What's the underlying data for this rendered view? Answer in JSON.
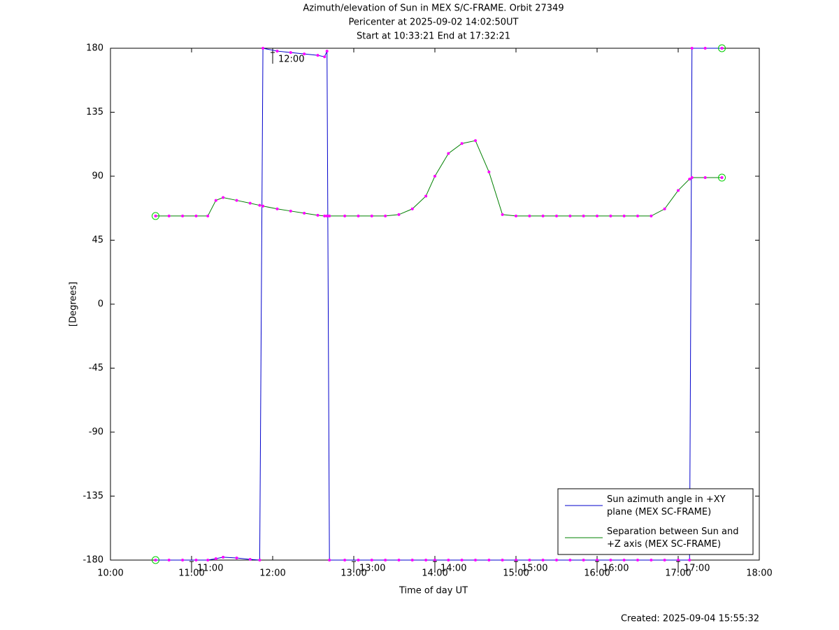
{
  "chart_data": {
    "type": "line",
    "title": "Azimuth/elevation of Sun in MEX S/C-FRAME.  Orbit 27349",
    "subtitle": "Pericenter at 2025-09-02 14:02:50UT",
    "subtitle2": "Start at 10:33:21 End at 17:32:21",
    "xlabel": "Time of day UT",
    "ylabel": "[Degrees]",
    "footer": "Created: 2025-09-04 15:55:32",
    "x": [
      10.556,
      10.722,
      10.889,
      11.056,
      11.2,
      11.3,
      11.389,
      11.556,
      11.722,
      11.84,
      11.88,
      12.056,
      12.222,
      12.389,
      12.556,
      12.64,
      12.67,
      12.7,
      12.889,
      13.056,
      13.222,
      13.389,
      13.556,
      13.722,
      13.889,
      14.0,
      14.167,
      14.333,
      14.5,
      14.667,
      14.833,
      15.0,
      15.167,
      15.333,
      15.5,
      15.667,
      15.833,
      16.0,
      16.167,
      16.333,
      16.5,
      16.667,
      16.833,
      17.0,
      17.14,
      17.17,
      17.333,
      17.539
    ],
    "series": [
      {
        "name": "Sun azimuth angle in +XY plane (MEX SC-FRAME)",
        "color": "#0000cc",
        "values": [
          -180,
          -180,
          -180,
          -180,
          -180,
          -179,
          -178,
          -178.5,
          -179.5,
          -180,
          180,
          178,
          177,
          176,
          175,
          174,
          178,
          -180,
          -180,
          -180,
          -180,
          -180,
          -180,
          -180,
          -180,
          -180,
          -180,
          -180,
          -180,
          -180,
          -180,
          -180,
          -180,
          -180,
          -180,
          -180,
          -180,
          -180,
          -180,
          -180,
          -180,
          -180,
          -180,
          -180,
          -180,
          180,
          180,
          180
        ]
      },
      {
        "name": "Separation between Sun and +Z axis (MEX SC-FRAME)",
        "color": "#008000",
        "values": [
          62,
          62,
          62,
          62,
          62,
          73,
          75,
          73,
          71,
          69.5,
          69,
          67,
          65.5,
          64,
          62.5,
          62,
          62,
          62,
          62,
          62,
          62,
          62,
          63,
          67,
          76,
          90,
          106,
          113,
          115,
          93,
          63,
          62,
          62,
          62,
          62,
          62,
          62,
          62,
          62,
          62,
          62,
          62,
          67,
          80,
          88,
          89,
          89,
          89
        ]
      }
    ],
    "annotations": [
      {
        "text": "11:00",
        "x": 11.0,
        "y": -180
      },
      {
        "text": "12:00",
        "x": 12.0,
        "y": 178
      },
      {
        "text": "13:00",
        "x": 13.0,
        "y": -180
      },
      {
        "text": "14:00",
        "x": 14.0,
        "y": -180
      },
      {
        "text": "15:00",
        "x": 15.0,
        "y": -180
      },
      {
        "text": "16:00",
        "x": 16.0,
        "y": -180
      },
      {
        "text": "17:00",
        "x": 17.0,
        "y": -180
      }
    ],
    "marker_color": "#ff00ff",
    "xlim": [
      10,
      18
    ],
    "xticks": [
      {
        "value": 10,
        "label": "10:00"
      },
      {
        "value": 11,
        "label": "11:00"
      },
      {
        "value": 12,
        "label": "12:00"
      },
      {
        "value": 13,
        "label": "13:00"
      },
      {
        "value": 14,
        "label": "14:00"
      },
      {
        "value": 15,
        "label": "15:00"
      },
      {
        "value": 16,
        "label": "16:00"
      },
      {
        "value": 17,
        "label": "17:00"
      },
      {
        "value": 18,
        "label": "18:00"
      }
    ],
    "ylim": [
      -180,
      180
    ],
    "yticks": [
      180,
      135,
      90,
      45,
      0,
      -45,
      -90,
      -135,
      -180
    ],
    "legend": "lower right"
  }
}
